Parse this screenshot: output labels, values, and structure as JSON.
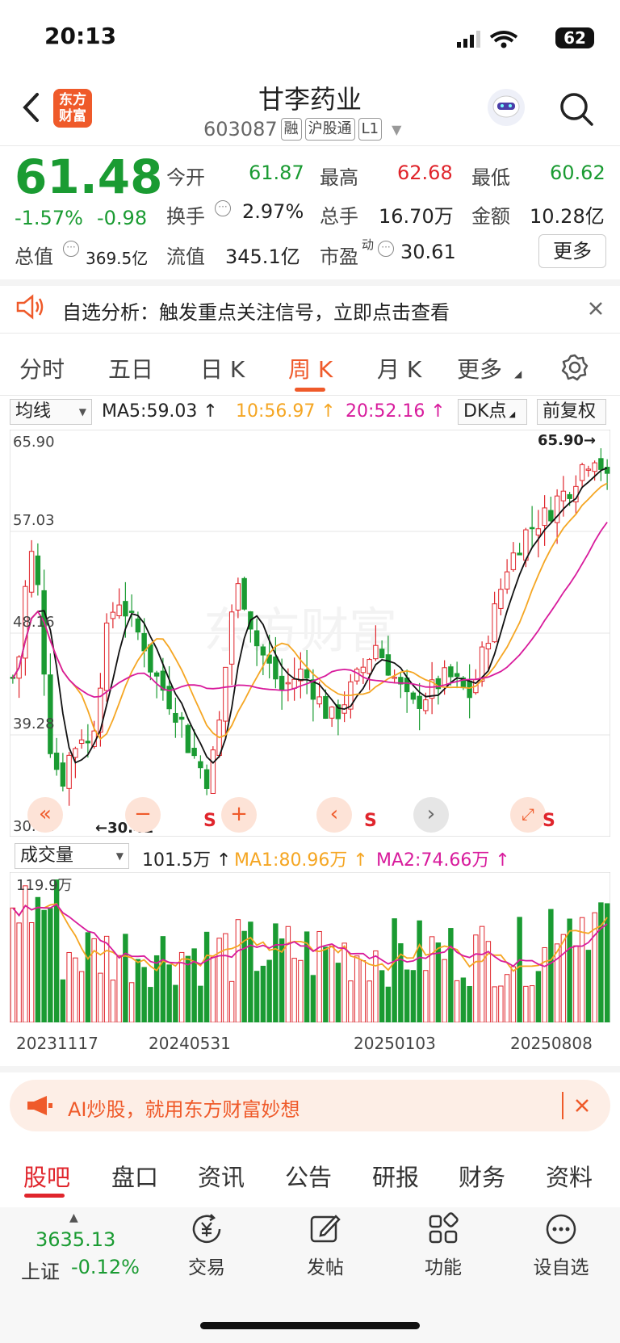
{
  "status": {
    "time": "20:13",
    "battery": "62"
  },
  "header": {
    "logo_line1": "东方",
    "logo_line2": "财富",
    "name": "甘李药业",
    "code": "603087",
    "tags": [
      "融",
      "沪股通",
      "L1"
    ]
  },
  "quote": {
    "price": "61.48",
    "change_pct": "-1.57%",
    "change": "-0.98",
    "open_label": "今开",
    "open": "61.87",
    "high_label": "最高",
    "high": "62.68",
    "low_label": "最低",
    "low": "60.62",
    "turnover_label": "换手",
    "turnover": "2.97%",
    "volume_label": "总手",
    "volume": "16.70万",
    "amount_label": "金额",
    "amount": "10.28亿",
    "mktcap_label": "总值",
    "mktcap": "369.5亿",
    "float_label": "流值",
    "float": "345.1亿",
    "pe_label": "市盈",
    "pe_sup": "动",
    "pe": "30.61",
    "more_label": "更多"
  },
  "notice": {
    "text": "自选分析：触发重点关注信号，立即点击查看"
  },
  "tabs": [
    "分时",
    "五日",
    "日 K",
    "周 K",
    "月 K",
    "更多"
  ],
  "toolbar": {
    "indicator": "均线",
    "ma5": "MA5:59.03",
    "ma10": "10:56.97",
    "ma20": "20:52.16",
    "dk": "DK点",
    "adjust": "前复权"
  },
  "chart": {
    "y_labels": [
      "65.90",
      "57.03",
      "48.16",
      "39.28",
      "30.41"
    ],
    "max_label": "65.90→",
    "min_label": "←30.41",
    "s_marker": "S"
  },
  "volume_toolbar": {
    "indicator": "成交量",
    "vol": "101.5万",
    "ma1": "MA1:80.96万",
    "ma2": "MA2:74.66万",
    "max_label": "119.9万"
  },
  "x_dates": [
    "20231117",
    "20240531",
    "20250103",
    "20250808"
  ],
  "banner": {
    "text": "AI炒股，就用东方财富妙想"
  },
  "bottom_tabs": [
    "股吧",
    "盘口",
    "资讯",
    "公告",
    "研报",
    "财务",
    "资料"
  ],
  "bottom_nav": {
    "index_value": "3635.13",
    "index_name": "上证",
    "index_change": "-0.12%",
    "trade": "交易",
    "post": "发帖",
    "functions": "功能",
    "watch": "设自选"
  },
  "colors": {
    "up": "#e0252c",
    "down": "#1a9b32",
    "accent": "#ef5a2a",
    "ma5": "#111111",
    "ma10": "#f5a623",
    "ma20": "#d81b9c"
  }
}
